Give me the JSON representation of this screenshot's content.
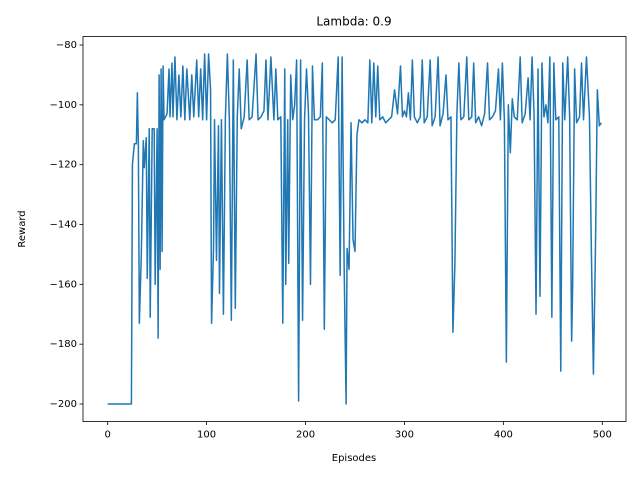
{
  "chart_data": {
    "type": "line",
    "title": "Lambda: 0.9",
    "x_label": "Episodes",
    "y_label": "Reward",
    "x": [
      0,
      24,
      25,
      27,
      29,
      30,
      31,
      32,
      34,
      36,
      37,
      39,
      40,
      42,
      43,
      45,
      47,
      48,
      50,
      51,
      52,
      53,
      54,
      55,
      56,
      57,
      60,
      62,
      63,
      65,
      66,
      68,
      70,
      72,
      74,
      76,
      78,
      80,
      83,
      85,
      87,
      90,
      92,
      94,
      96,
      98,
      100,
      102,
      104,
      105,
      107,
      108,
      110,
      112,
      113,
      115,
      117,
      119,
      121,
      123,
      125,
      127,
      129,
      131,
      133,
      135,
      138,
      141,
      143,
      146,
      150,
      152,
      155,
      158,
      160,
      162,
      165,
      168,
      170,
      172,
      175,
      177,
      179,
      180,
      182,
      183,
      185,
      187,
      189,
      191,
      193,
      195,
      197,
      199,
      201,
      203,
      205,
      207,
      209,
      212,
      215,
      217,
      219,
      221,
      224,
      227,
      230,
      233,
      235,
      237,
      239,
      241,
      242,
      244,
      246,
      248,
      250,
      252,
      254,
      257,
      260,
      263,
      265,
      267,
      269,
      271,
      273,
      275,
      278,
      281,
      284,
      287,
      290,
      293,
      296,
      298,
      300,
      302,
      304,
      306,
      308,
      310,
      313,
      316,
      318,
      320,
      323,
      326,
      328,
      331,
      334,
      336,
      339,
      342,
      344,
      347,
      349,
      351,
      353,
      355,
      357,
      360,
      363,
      365,
      368,
      370,
      372,
      375,
      378,
      381,
      384,
      386,
      389,
      392,
      395,
      397,
      399,
      401,
      403,
      405,
      407,
      409,
      411,
      414,
      417,
      419,
      422,
      425,
      427,
      429,
      431,
      433,
      435,
      437,
      439,
      441,
      443,
      445,
      447,
      449,
      451,
      453,
      456,
      458,
      460,
      462,
      465,
      467,
      469,
      470,
      472,
      474,
      477,
      479,
      481,
      484,
      487,
      489,
      491,
      493,
      495,
      497,
      499
    ],
    "series": [
      {
        "name": "Reward",
        "color": "#1f77b4",
        "values": [
          -200,
          -200,
          -120,
          -113,
          -113,
          -96,
          -113,
          -173,
          -150,
          -112,
          -121,
          -111,
          -158,
          -108,
          -171,
          -108,
          -108,
          -160,
          -108,
          -178,
          -90,
          -155,
          -88,
          -149,
          -87,
          -105,
          -103,
          -88,
          -104,
          -86,
          -104,
          -84,
          -105,
          -90,
          -104,
          -87,
          -105,
          -88,
          -105,
          -90,
          -104,
          -85,
          -104,
          -88,
          -105,
          -83,
          -105,
          -83,
          -95,
          -173,
          -148,
          -105,
          -152,
          -107,
          -163,
          -105,
          -170,
          -104,
          -83,
          -105,
          -172,
          -85,
          -168,
          -104,
          -88,
          -108,
          -104,
          -85,
          -105,
          -104,
          -83,
          -105,
          -104,
          -102,
          -85,
          -105,
          -84,
          -105,
          -88,
          -105,
          -104,
          -173,
          -88,
          -160,
          -105,
          -153,
          -90,
          -105,
          -100,
          -85,
          -199,
          -85,
          -172,
          -105,
          -88,
          -103,
          -160,
          -87,
          -105,
          -105,
          -104,
          -86,
          -175,
          -104,
          -105,
          -106,
          -105,
          -84,
          -157,
          -84,
          -153,
          -200,
          -148,
          -155,
          -106,
          -145,
          -149,
          -110,
          -105,
          -106,
          -105,
          -106,
          -85,
          -106,
          -86,
          -104,
          -87,
          -105,
          -104,
          -106,
          -105,
          -104,
          -95,
          -103,
          -87,
          -104,
          -102,
          -104,
          -96,
          -105,
          -85,
          -104,
          -106,
          -104,
          -85,
          -106,
          -104,
          -85,
          -107,
          -104,
          -84,
          -107,
          -103,
          -90,
          -105,
          -104,
          -176,
          -153,
          -103,
          -86,
          -105,
          -104,
          -84,
          -105,
          -104,
          -86,
          -106,
          -104,
          -107,
          -103,
          -86,
          -105,
          -104,
          -102,
          -88,
          -105,
          -86,
          -105,
          -186,
          -100,
          -116,
          -98,
          -104,
          -105,
          -84,
          -106,
          -103,
          -91,
          -105,
          -84,
          -103,
          -170,
          -88,
          -164,
          -86,
          -104,
          -100,
          -106,
          -84,
          -171,
          -86,
          -105,
          -104,
          -189,
          -86,
          -105,
          -84,
          -104,
          -179,
          -161,
          -88,
          -106,
          -104,
          -86,
          -105,
          -84,
          -104,
          -150,
          -190,
          -150,
          -95,
          -107,
          -106
        ]
      }
    ],
    "xlim": [
      -24.95,
      523.95
    ],
    "ylim": [
      -205.85,
      -77.15
    ],
    "xticks": [
      0,
      100,
      200,
      300,
      400,
      500
    ],
    "yticks": [
      {
        "value": -200,
        "label": "−200"
      },
      {
        "value": -180,
        "label": "−180"
      },
      {
        "value": -160,
        "label": "−160"
      },
      {
        "value": -140,
        "label": "−140"
      },
      {
        "value": -120,
        "label": "−120"
      },
      {
        "value": -100,
        "label": "−100"
      },
      {
        "value": -80,
        "label": "−80"
      }
    ],
    "grid": false
  }
}
